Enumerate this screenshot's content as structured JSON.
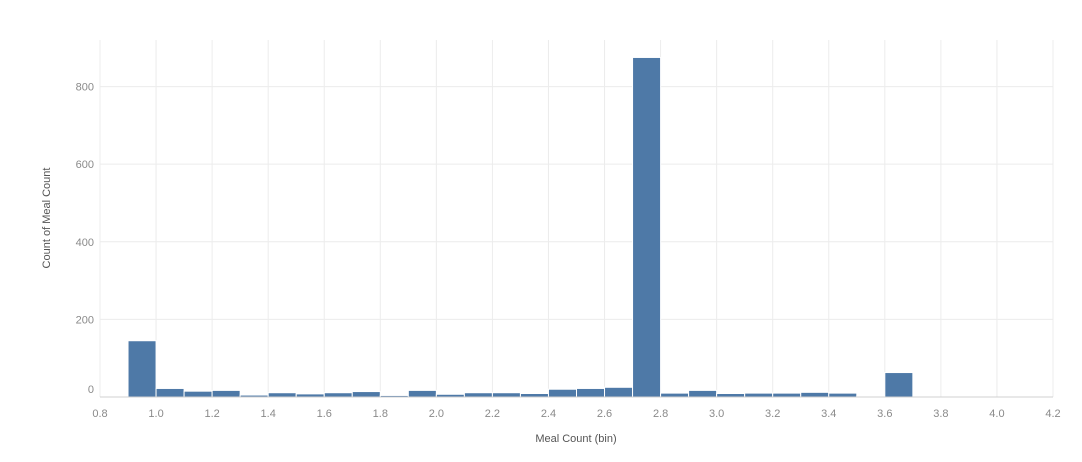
{
  "chart_data": {
    "type": "bar",
    "title": "",
    "xlabel": "Meal Count (bin)",
    "ylabel": "Count of Meal Count",
    "bin_width": 0.1,
    "bins": [
      {
        "x0": 0.9,
        "x1": 1.0,
        "value": 145
      },
      {
        "x0": 1.0,
        "x1": 1.1,
        "value": 22
      },
      {
        "x0": 1.1,
        "x1": 1.2,
        "value": 15
      },
      {
        "x0": 1.2,
        "x1": 1.3,
        "value": 17
      },
      {
        "x0": 1.3,
        "x1": 1.4,
        "value": 5
      },
      {
        "x0": 1.4,
        "x1": 1.5,
        "value": 11
      },
      {
        "x0": 1.5,
        "x1": 1.6,
        "value": 8
      },
      {
        "x0": 1.6,
        "x1": 1.7,
        "value": 11
      },
      {
        "x0": 1.7,
        "x1": 1.8,
        "value": 14
      },
      {
        "x0": 1.8,
        "x1": 1.9,
        "value": 4
      },
      {
        "x0": 1.9,
        "x1": 2.0,
        "value": 17
      },
      {
        "x0": 2.0,
        "x1": 2.1,
        "value": 7
      },
      {
        "x0": 2.1,
        "x1": 2.2,
        "value": 11
      },
      {
        "x0": 2.2,
        "x1": 2.3,
        "value": 11
      },
      {
        "x0": 2.3,
        "x1": 2.4,
        "value": 9
      },
      {
        "x0": 2.4,
        "x1": 2.5,
        "value": 20
      },
      {
        "x0": 2.5,
        "x1": 2.6,
        "value": 22
      },
      {
        "x0": 2.6,
        "x1": 2.7,
        "value": 25
      },
      {
        "x0": 2.7,
        "x1": 2.8,
        "value": 875
      },
      {
        "x0": 2.8,
        "x1": 2.9,
        "value": 10
      },
      {
        "x0": 2.9,
        "x1": 3.0,
        "value": 17
      },
      {
        "x0": 3.0,
        "x1": 3.1,
        "value": 9
      },
      {
        "x0": 3.1,
        "x1": 3.2,
        "value": 10
      },
      {
        "x0": 3.2,
        "x1": 3.3,
        "value": 10
      },
      {
        "x0": 3.3,
        "x1": 3.4,
        "value": 12
      },
      {
        "x0": 3.4,
        "x1": 3.5,
        "value": 10
      },
      {
        "x0": 3.5,
        "x1": 3.6,
        "value": 2
      },
      {
        "x0": 3.6,
        "x1": 3.7,
        "value": 63
      }
    ],
    "x_ticks": [
      "0.8",
      "1.0",
      "1.2",
      "1.4",
      "1.6",
      "1.8",
      "2.0",
      "2.2",
      "2.4",
      "2.6",
      "2.8",
      "3.0",
      "3.2",
      "3.4",
      "3.6",
      "3.8",
      "4.0",
      "4.2"
    ],
    "y_ticks": [
      "0",
      "200",
      "400",
      "600",
      "800"
    ],
    "xlim": [
      0.8,
      4.2
    ],
    "ylim": [
      0,
      920
    ],
    "grid": true,
    "legend": "none",
    "bar_color": "#4e79a7"
  }
}
